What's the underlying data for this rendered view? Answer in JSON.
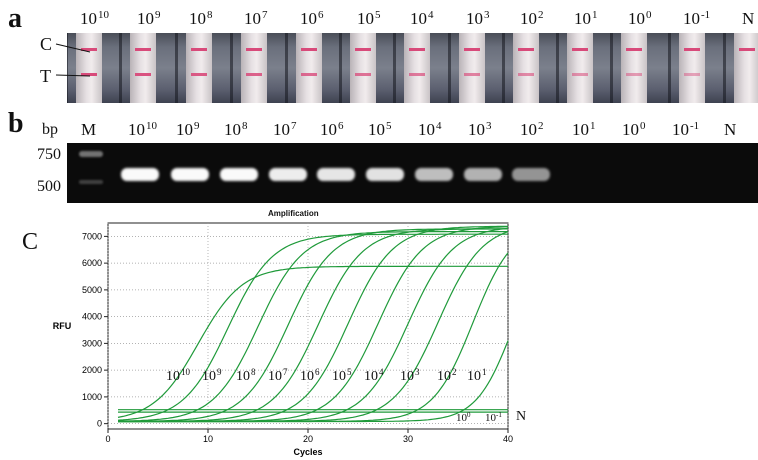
{
  "panels": {
    "a": {
      "letter": "a",
      "marker_c": "C",
      "marker_t": "T"
    },
    "b": {
      "letter": "b",
      "bp_unit": "bp",
      "ladder_label": "M",
      "bp_750": "750",
      "bp_500": "500"
    },
    "c": {
      "letter": "C"
    }
  },
  "concentrations": [
    {
      "base": "10",
      "exp": "10"
    },
    {
      "base": "10",
      "exp": "9"
    },
    {
      "base": "10",
      "exp": "8"
    },
    {
      "base": "10",
      "exp": "7"
    },
    {
      "base": "10",
      "exp": "6"
    },
    {
      "base": "10",
      "exp": "5"
    },
    {
      "base": "10",
      "exp": "4"
    },
    {
      "base": "10",
      "exp": "3"
    },
    {
      "base": "10",
      "exp": "2"
    },
    {
      "base": "10",
      "exp": "1"
    },
    {
      "base": "10",
      "exp": "0"
    },
    {
      "base": "10",
      "exp": "-1"
    },
    {
      "base": "N",
      "exp": ""
    }
  ],
  "strip_results": {
    "test_line_positive": [
      true,
      true,
      true,
      true,
      true,
      true,
      true,
      true,
      true,
      true,
      true,
      true,
      false
    ],
    "band_color": "#d84a7a"
  },
  "gel_results": {
    "band_intensity": [
      1.0,
      1.0,
      1.0,
      0.95,
      0.92,
      0.9,
      0.75,
      0.7,
      0.55,
      0.0,
      0.0,
      0.0,
      0.0
    ]
  },
  "chart_data": {
    "type": "line",
    "title": "Amplification",
    "xlabel": "Cycles",
    "ylabel": "RFU",
    "xlim": [
      0,
      40
    ],
    "ylim": [
      -200,
      7500
    ],
    "xticks": [
      0,
      10,
      20,
      30,
      40
    ],
    "yticks": [
      0,
      1000,
      2000,
      3000,
      4000,
      5000,
      6000,
      7000
    ],
    "grid": true,
    "line_color": "#1f9a3a",
    "series": [
      {
        "name": "10^10",
        "midpoint": 9,
        "plateau": 5800,
        "slope": 0.45
      },
      {
        "name": "10^9",
        "midpoint": 12,
        "plateau": 7000,
        "slope": 0.45
      },
      {
        "name": "10^8",
        "midpoint": 15,
        "plateau": 7100,
        "slope": 0.45
      },
      {
        "name": "10^7",
        "midpoint": 18,
        "plateau": 7200,
        "slope": 0.45
      },
      {
        "name": "10^6",
        "midpoint": 21,
        "plateau": 7200,
        "slope": 0.45
      },
      {
        "name": "10^5",
        "midpoint": 24,
        "plateau": 7300,
        "slope": 0.45
      },
      {
        "name": "10^4",
        "midpoint": 27,
        "plateau": 7300,
        "slope": 0.45
      },
      {
        "name": "10^3",
        "midpoint": 30,
        "plateau": 7300,
        "slope": 0.45
      },
      {
        "name": "10^2",
        "midpoint": 33,
        "plateau": 7400,
        "slope": 0.45
      },
      {
        "name": "10^1",
        "midpoint": 36.5,
        "plateau": 7400,
        "slope": 0.5
      },
      {
        "name": "10^0",
        "midpoint": 40.5,
        "plateau": 7000,
        "slope": 0.55
      },
      {
        "name": "10^-1",
        "flat": 430
      },
      {
        "name": "N",
        "flat": 520
      }
    ],
    "curve_labels": [
      {
        "base": "10",
        "exp": "10"
      },
      {
        "base": "10",
        "exp": "9"
      },
      {
        "base": "10",
        "exp": "8"
      },
      {
        "base": "10",
        "exp": "7"
      },
      {
        "base": "10",
        "exp": "6"
      },
      {
        "base": "10",
        "exp": "5"
      },
      {
        "base": "10",
        "exp": "4"
      },
      {
        "base": "10",
        "exp": "3"
      },
      {
        "base": "10",
        "exp": "2"
      },
      {
        "base": "10",
        "exp": "1"
      }
    ],
    "baseline_labels": [
      {
        "base": "10",
        "exp": "0"
      },
      {
        "base": "10",
        "exp": "-1"
      },
      {
        "base": "N",
        "exp": ""
      }
    ]
  }
}
